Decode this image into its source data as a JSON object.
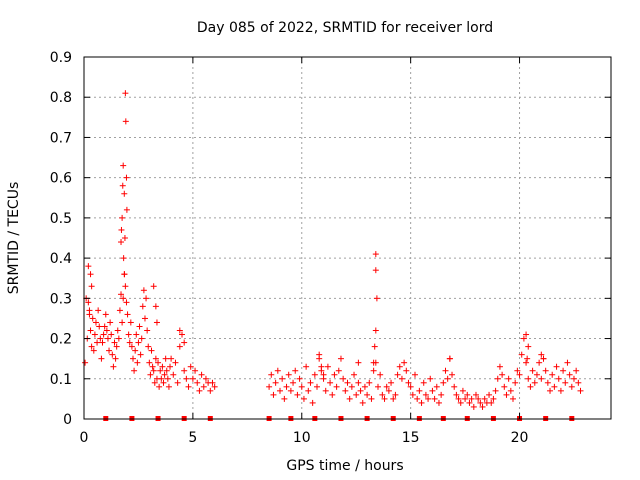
{
  "chart_data": {
    "type": "scatter",
    "title": "Day 085 of 2022, SRMTID for receiver lord",
    "xlabel": "GPS time / hours",
    "ylabel": "SRMTID / TECUs",
    "xlim": [
      0,
      24.2
    ],
    "ylim": [
      0,
      0.9
    ],
    "x_ticks": [
      0,
      5,
      10,
      15,
      20
    ],
    "x_tick_labels": [
      "0",
      "5",
      "10",
      "15",
      "20"
    ],
    "y_ticks": [
      0,
      0.1,
      0.2,
      0.3,
      0.4,
      0.5,
      0.6,
      0.7,
      0.8,
      0.9
    ],
    "y_tick_labels": [
      "0",
      "0.1",
      "0.2",
      "0.3",
      "0.4",
      "0.5",
      "0.6",
      "0.7",
      "0.8",
      "0.9"
    ],
    "grid": true,
    "marker": "+",
    "marker_color": "#ff0000",
    "baseline_markers_x": [
      1.0,
      2.2,
      3.4,
      4.6,
      5.8,
      8.5,
      9.5,
      10.6,
      11.8,
      13.0,
      14.2,
      15.4,
      16.5,
      17.6,
      18.8,
      20.0,
      21.2,
      22.4
    ],
    "series": [
      {
        "name": "SRMTID",
        "x": [
          0.05,
          0.1,
          0.15,
          0.2,
          0.25,
          0.3,
          0.35,
          0.4,
          0.45,
          0.5,
          0.55,
          0.6,
          0.65,
          0.7,
          0.75,
          0.8,
          0.85,
          0.9,
          0.95,
          1.0,
          1.05,
          1.1,
          1.15,
          1.2,
          1.25,
          1.3,
          1.35,
          1.4,
          1.45,
          1.5,
          1.55,
          1.6,
          1.65,
          1.7,
          1.75,
          1.8,
          1.85,
          1.9,
          1.95,
          2.0,
          2.05,
          2.1,
          2.15,
          2.2,
          2.25,
          2.3,
          2.35,
          2.4,
          2.45,
          2.5,
          2.55,
          2.6,
          2.65,
          2.7,
          2.75,
          2.8,
          2.85,
          2.9,
          2.95,
          3.0,
          3.05,
          3.1,
          3.15,
          3.2,
          3.25,
          3.3,
          3.35,
          3.4,
          3.45,
          3.5,
          3.55,
          3.6,
          3.65,
          3.7,
          3.75,
          3.8,
          3.85,
          3.9,
          3.95,
          4.0,
          4.1,
          4.2,
          4.3,
          4.4,
          4.5,
          4.6,
          4.7,
          4.8,
          4.9,
          5.0,
          5.1,
          5.2,
          5.3,
          5.4,
          5.5,
          5.6,
          5.7,
          5.8,
          5.9,
          6.0,
          1.9,
          1.92,
          1.95,
          1.97,
          1.85,
          1.88,
          1.8,
          1.78,
          1.75,
          1.7,
          1.72,
          1.82,
          1.86,
          0.2,
          0.3,
          0.35,
          0.25,
          3.2,
          3.3,
          3.35,
          4.4,
          4.6,
          8.5,
          8.6,
          8.7,
          8.8,
          8.9,
          9.0,
          9.1,
          9.2,
          9.3,
          9.4,
          9.5,
          9.6,
          9.7,
          9.8,
          9.9,
          10.0,
          10.1,
          10.2,
          10.3,
          10.4,
          10.5,
          10.6,
          10.7,
          10.8,
          10.9,
          11.0,
          11.1,
          11.2,
          11.3,
          11.4,
          11.5,
          11.6,
          11.7,
          11.8,
          11.9,
          12.0,
          12.1,
          12.2,
          12.3,
          12.4,
          12.5,
          12.6,
          12.7,
          12.8,
          12.9,
          13.0,
          13.1,
          13.2,
          13.3,
          13.4,
          13.5,
          13.6,
          13.7,
          13.8,
          13.9,
          14.0,
          14.1,
          14.2,
          14.3,
          14.4,
          14.5,
          14.6,
          14.7,
          14.8,
          14.9,
          15.0,
          15.1,
          15.2,
          15.3,
          15.4,
          15.5,
          15.6,
          15.7,
          15.8,
          15.9,
          16.0,
          16.1,
          16.2,
          16.3,
          16.4,
          16.5,
          16.6,
          16.7,
          16.8,
          16.9,
          17.0,
          17.1,
          17.2,
          17.3,
          17.4,
          17.5,
          17.6,
          17.7,
          17.8,
          17.9,
          18.0,
          18.1,
          18.2,
          18.3,
          18.4,
          18.5,
          18.6,
          18.7,
          18.8,
          18.9,
          19.0,
          19.1,
          19.2,
          19.3,
          19.4,
          19.5,
          19.6,
          19.7,
          19.8,
          19.9,
          20.0,
          20.1,
          20.2,
          20.3,
          20.4,
          20.5,
          20.6,
          20.7,
          20.8,
          20.9,
          21.0,
          21.1,
          21.2,
          21.3,
          21.4,
          21.5,
          21.6,
          21.7,
          21.8,
          21.9,
          22.0,
          22.1,
          22.2,
          22.3,
          22.4,
          22.5,
          22.6,
          22.7,
          22.8,
          13.4,
          13.4,
          13.45,
          13.4,
          13.35,
          13.3,
          10.8,
          10.9,
          11.0,
          12.6,
          16.8,
          20.3,
          20.4,
          20.35,
          21.0,
          21.1
        ],
        "y": [
          0.14,
          0.3,
          0.2,
          0.38,
          0.26,
          0.22,
          0.18,
          0.25,
          0.17,
          0.21,
          0.24,
          0.19,
          0.27,
          0.23,
          0.2,
          0.15,
          0.19,
          0.21,
          0.23,
          0.26,
          0.22,
          0.2,
          0.17,
          0.24,
          0.21,
          0.16,
          0.13,
          0.19,
          0.15,
          0.18,
          0.22,
          0.2,
          0.27,
          0.31,
          0.24,
          0.3,
          0.36,
          0.33,
          0.29,
          0.26,
          0.21,
          0.19,
          0.24,
          0.18,
          0.15,
          0.12,
          0.17,
          0.21,
          0.14,
          0.19,
          0.23,
          0.16,
          0.2,
          0.28,
          0.32,
          0.25,
          0.3,
          0.22,
          0.18,
          0.14,
          0.11,
          0.17,
          0.13,
          0.12,
          0.09,
          0.15,
          0.1,
          0.14,
          0.08,
          0.12,
          0.1,
          0.13,
          0.09,
          0.11,
          0.15,
          0.12,
          0.1,
          0.08,
          0.13,
          0.15,
          0.11,
          0.14,
          0.09,
          0.18,
          0.21,
          0.12,
          0.1,
          0.08,
          0.13,
          0.1,
          0.12,
          0.09,
          0.07,
          0.11,
          0.08,
          0.1,
          0.09,
          0.07,
          0.09,
          0.08,
          0.81,
          0.74,
          0.6,
          0.52,
          0.56,
          0.45,
          0.63,
          0.58,
          0.5,
          0.44,
          0.47,
          0.4,
          0.36,
          0.29,
          0.36,
          0.33,
          0.27,
          0.33,
          0.28,
          0.24,
          0.22,
          0.19,
          0.08,
          0.11,
          0.06,
          0.09,
          0.12,
          0.07,
          0.1,
          0.05,
          0.08,
          0.11,
          0.07,
          0.09,
          0.12,
          0.06,
          0.1,
          0.08,
          0.05,
          0.13,
          0.07,
          0.09,
          0.04,
          0.11,
          0.08,
          0.15,
          0.12,
          0.1,
          0.07,
          0.13,
          0.09,
          0.06,
          0.11,
          0.08,
          0.12,
          0.15,
          0.1,
          0.07,
          0.09,
          0.05,
          0.08,
          0.11,
          0.06,
          0.09,
          0.07,
          0.04,
          0.08,
          0.06,
          0.09,
          0.05,
          0.12,
          0.14,
          0.08,
          0.11,
          0.06,
          0.05,
          0.08,
          0.07,
          0.09,
          0.05,
          0.06,
          0.11,
          0.13,
          0.1,
          0.14,
          0.12,
          0.09,
          0.08,
          0.06,
          0.11,
          0.05,
          0.07,
          0.04,
          0.09,
          0.06,
          0.05,
          0.1,
          0.07,
          0.05,
          0.08,
          0.04,
          0.06,
          0.09,
          0.12,
          0.1,
          0.15,
          0.11,
          0.08,
          0.06,
          0.05,
          0.04,
          0.07,
          0.05,
          0.06,
          0.04,
          0.05,
          0.03,
          0.06,
          0.05,
          0.04,
          0.03,
          0.05,
          0.04,
          0.06,
          0.04,
          0.05,
          0.07,
          0.1,
          0.13,
          0.11,
          0.08,
          0.06,
          0.1,
          0.07,
          0.05,
          0.09,
          0.12,
          0.11,
          0.16,
          0.2,
          0.14,
          0.1,
          0.08,
          0.12,
          0.09,
          0.11,
          0.14,
          0.1,
          0.15,
          0.12,
          0.09,
          0.07,
          0.11,
          0.08,
          0.13,
          0.1,
          0.07,
          0.12,
          0.09,
          0.14,
          0.11,
          0.08,
          0.1,
          0.12,
          0.09,
          0.07,
          0.41,
          0.37,
          0.3,
          0.22,
          0.18,
          0.14,
          0.16,
          0.13,
          0.11,
          0.14,
          0.15,
          0.21,
          0.18,
          0.15,
          0.16,
          0.15
        ]
      }
    ]
  }
}
